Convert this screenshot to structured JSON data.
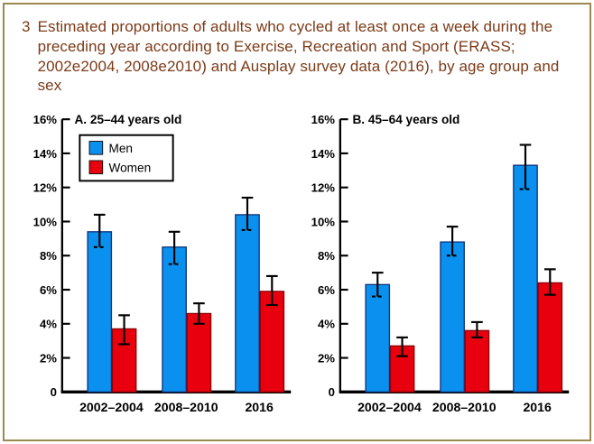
{
  "figure": {
    "number": "3",
    "title": "Estimated proportions of adults who cycled at least once a week during the preceding year according to Exercise, Recreation and Sport (ERASS; 2002e2004, 2008e2010) and Ausplay survey data (2016), by age group and sex"
  },
  "colors": {
    "frame_border": "#9b8a4f",
    "title_text": "#7b3a17",
    "men_fill": "#0a91f0",
    "men_stroke": "#10357d",
    "women_fill": "#e8000e",
    "women_stroke": "#8e0005",
    "axis": "#000000",
    "error_bar": "#000000",
    "tick_label": "#000000"
  },
  "legend": {
    "items": [
      {
        "label": "Men",
        "color": "#0a91f0"
      },
      {
        "label": "Women",
        "color": "#e8000e"
      }
    ]
  },
  "chart_data": [
    {
      "type": "bar",
      "title": "A. 25–44 years old",
      "categories": [
        "2002–2004",
        "2008–2010",
        "2016"
      ],
      "series": [
        {
          "name": "Men",
          "fill": "#0a91f0",
          "stroke": "#10357d",
          "values": [
            9.4,
            8.5,
            10.4
          ],
          "ci_low": [
            8.5,
            7.5,
            9.5
          ],
          "ci_high": [
            10.4,
            9.4,
            11.4
          ]
        },
        {
          "name": "Women",
          "fill": "#e8000e",
          "stroke": "#8e0005",
          "values": [
            3.7,
            4.6,
            5.9
          ],
          "ci_low": [
            2.8,
            4.0,
            5.1
          ],
          "ci_high": [
            4.5,
            5.2,
            6.8
          ]
        }
      ],
      "ylim": [
        0,
        16
      ],
      "ytick_step": 2,
      "ytick_labels": [
        "0",
        "2%",
        "4%",
        "6%",
        "8%",
        "10%",
        "12%",
        "14%",
        "16%"
      ],
      "grid": false,
      "show_legend": true,
      "legend_position": "upper-left"
    },
    {
      "type": "bar",
      "title": "B. 45–64 years old",
      "categories": [
        "2002–2004",
        "2008–2010",
        "2016"
      ],
      "series": [
        {
          "name": "Men",
          "fill": "#0a91f0",
          "stroke": "#10357d",
          "values": [
            6.3,
            8.8,
            13.3
          ],
          "ci_low": [
            5.6,
            8.0,
            11.9
          ],
          "ci_high": [
            7.0,
            9.7,
            14.5
          ]
        },
        {
          "name": "Women",
          "fill": "#e8000e",
          "stroke": "#8e0005",
          "values": [
            2.7,
            3.6,
            6.4
          ],
          "ci_low": [
            2.1,
            3.2,
            5.7
          ],
          "ci_high": [
            3.2,
            4.1,
            7.2
          ]
        }
      ],
      "ylim": [
        0,
        16
      ],
      "ytick_step": 2,
      "ytick_labels": [
        "0",
        "2%",
        "4%",
        "6%",
        "8%",
        "10%",
        "12%",
        "14%",
        "16%"
      ],
      "grid": false,
      "show_legend": false,
      "legend_position": null
    }
  ]
}
